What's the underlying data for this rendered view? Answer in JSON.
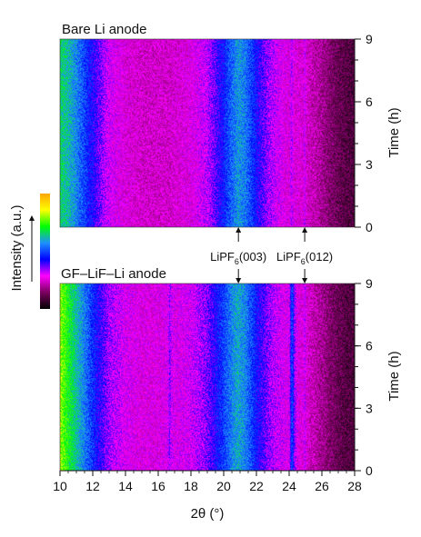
{
  "chart_data": [
    {
      "type": "heatmap",
      "title": "Bare Li anode",
      "ylabel": "Time (h)",
      "xlim": [
        10,
        28
      ],
      "ylim": [
        0,
        9
      ],
      "yticks": [
        0,
        3,
        6,
        9
      ],
      "intensity_profile": {
        "x": [
          10,
          10.5,
          11,
          11.5,
          12,
          12.5,
          13,
          14,
          15,
          16,
          16.5,
          16.7,
          17,
          18,
          19,
          19.5,
          20,
          20.5,
          20.9,
          21.3,
          21.8,
          22.3,
          23,
          23.5,
          24,
          24.2,
          24.5,
          24.9,
          25.3,
          26,
          26.5,
          27,
          27.5,
          28
        ],
        "v": [
          0.66,
          0.62,
          0.56,
          0.49,
          0.42,
          0.36,
          0.3,
          0.26,
          0.24,
          0.24,
          0.24,
          0.24,
          0.25,
          0.27,
          0.32,
          0.38,
          0.45,
          0.53,
          0.58,
          0.55,
          0.47,
          0.39,
          0.32,
          0.29,
          0.26,
          0.27,
          0.26,
          0.25,
          0.23,
          0.19,
          0.15,
          0.12,
          0.1,
          0.09
        ]
      },
      "sharp_lines": [
        {
          "x": 24.15,
          "width": 0.12,
          "delta": 0.06
        },
        {
          "x": 24.95,
          "width": 0.1,
          "delta": 0.07
        }
      ]
    },
    {
      "type": "heatmap",
      "title": "GF–LiF–Li anode",
      "xlabel": "2θ (°)",
      "ylabel": "Time (h)",
      "xlim": [
        10,
        28
      ],
      "ylim": [
        0,
        9
      ],
      "xticks": [
        10,
        12,
        14,
        16,
        18,
        20,
        22,
        24,
        26,
        28
      ],
      "yticks": [
        0,
        3,
        6,
        9
      ],
      "intensity_profile": {
        "x": [
          10,
          10.5,
          11,
          11.5,
          12,
          12.5,
          13,
          14,
          15,
          16,
          16.5,
          16.7,
          17,
          18,
          19,
          19.5,
          20,
          20.5,
          20.9,
          21.3,
          21.8,
          22.3,
          23,
          23.5,
          24,
          24.2,
          24.5,
          24.9,
          25.3,
          26,
          26.5,
          27,
          27.5,
          28
        ],
        "v": [
          0.8,
          0.71,
          0.63,
          0.55,
          0.47,
          0.4,
          0.34,
          0.29,
          0.27,
          0.27,
          0.28,
          0.31,
          0.28,
          0.3,
          0.36,
          0.42,
          0.49,
          0.56,
          0.6,
          0.56,
          0.48,
          0.4,
          0.33,
          0.3,
          0.28,
          0.42,
          0.27,
          0.26,
          0.23,
          0.19,
          0.15,
          0.12,
          0.1,
          0.09
        ]
      },
      "sharp_lines": [
        {
          "x": 16.7,
          "width": 0.1,
          "delta": 0.05
        },
        {
          "x": 24.15,
          "width": 0.14,
          "delta": 0.1
        },
        {
          "x": 24.95,
          "width": 0.1,
          "delta": 0.07
        }
      ]
    }
  ],
  "annotations": [
    {
      "base": "LiPF",
      "sub": "6",
      "rest": "(003)",
      "x": 20.9
    },
    {
      "base": "LiPF",
      "sub": "6",
      "rest": "(012)",
      "x": 24.95
    }
  ],
  "colorbar": {
    "label": "Intensity (a.u.)",
    "colors": [
      "#000000",
      "#7a005e",
      "#ff00ff",
      "#0000ff",
      "#1e90ff",
      "#00ff00",
      "#ffff00",
      "#ffa500"
    ]
  }
}
